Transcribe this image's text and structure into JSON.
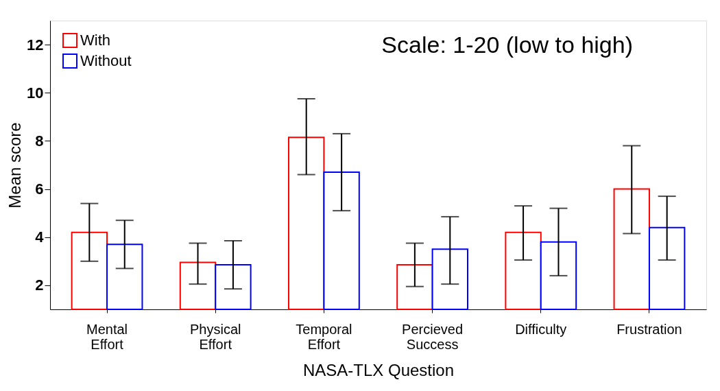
{
  "chart_data": {
    "type": "bar",
    "xlabel": "NASA-TLX Question",
    "ylabel": "Mean score",
    "categories": [
      "Mental Effort",
      "Physical Effort",
      "Temporal Effort",
      "Percieved Success",
      "Difficulty",
      "Frustration"
    ],
    "series": [
      {
        "name": "With",
        "color": "#ff0000",
        "values": [
          4.2,
          2.95,
          8.15,
          2.85,
          4.2,
          6.0
        ],
        "errors": [
          [
            3.0,
            5.4
          ],
          [
            2.05,
            3.75
          ],
          [
            6.6,
            9.75
          ],
          [
            1.95,
            3.75
          ],
          [
            3.05,
            5.3
          ],
          [
            4.15,
            7.8
          ]
        ]
      },
      {
        "name": "Without",
        "color": "#0000ff",
        "values": [
          3.7,
          2.85,
          6.7,
          3.5,
          3.8,
          4.4
        ],
        "errors": [
          [
            2.7,
            4.7
          ],
          [
            1.85,
            3.85
          ],
          [
            5.1,
            8.3
          ],
          [
            2.05,
            4.85
          ],
          [
            2.4,
            5.2
          ],
          [
            3.05,
            5.7
          ]
        ]
      }
    ],
    "ylim": [
      1,
      13
    ],
    "yticks": [
      2,
      4,
      6,
      8,
      10,
      12
    ],
    "grid": false,
    "legend": "top left",
    "annotations": [
      "Scale: 1-20 (low to high)"
    ]
  }
}
